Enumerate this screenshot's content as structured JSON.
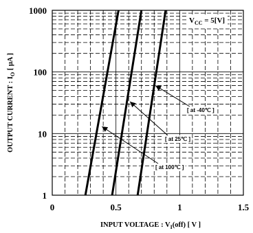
{
  "chart_data": {
    "type": "line",
    "title": "",
    "xlabel": "INPUT VOLTAGE : V",
    "xlabel_sub": "I",
    "xlabel_tail": "(off) [ V ]",
    "ylabel": "OUTPUT CURRENT : I",
    "ylabel_sub": "O",
    "ylabel_tail": "[ μA ]",
    "condition": "V",
    "condition_sub": "CC",
    "condition_tail": " = 5[V]",
    "xlim": [
      0,
      1.5
    ],
    "ylim": [
      1,
      1000
    ],
    "yscale": "log",
    "x_ticks": [
      "0",
      "0.5",
      "1",
      "1.5"
    ],
    "y_ticks": [
      "1",
      "10",
      "100",
      "1000"
    ],
    "grid": true,
    "series": [
      {
        "name": "[ at 100℃ ]",
        "x": [
          0.26,
          0.52
        ],
        "y": [
          1,
          1000
        ]
      },
      {
        "name": "[ at 25℃ ]",
        "x": [
          0.47,
          0.7
        ],
        "y": [
          1,
          1000
        ]
      },
      {
        "name": "[ at -40℃ ]",
        "x": [
          0.67,
          0.89
        ],
        "y": [
          1,
          1000
        ]
      }
    ],
    "annotations": [
      {
        "text": "[ at -40℃ ]",
        "series": 2,
        "point": [
          0.81,
          60
        ]
      },
      {
        "text": "[ at 25℃ ]",
        "series": 1,
        "point": [
          0.61,
          33
        ]
      },
      {
        "text": "[ at 100℃ ]",
        "series": 0,
        "point": [
          0.39,
          13
        ]
      }
    ],
    "colors": {
      "line": "#000000",
      "background": "#ffffff"
    }
  }
}
